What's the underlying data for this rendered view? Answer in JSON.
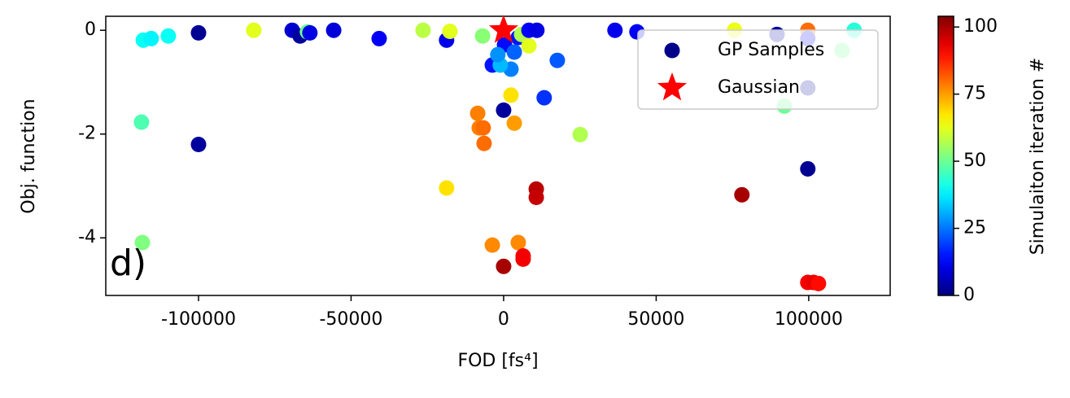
{
  "chart_data": {
    "type": "scatter",
    "xlabel": "FOD [fs⁴]",
    "ylabel": "Obj. function",
    "annotation": "d)",
    "xlim": [
      -130400,
      126700
    ],
    "xticks": [
      -100000,
      -50000,
      0,
      50000,
      100000
    ],
    "ylim": [
      -5.11,
      0.27
    ],
    "yticks": [
      -4,
      -2,
      0
    ],
    "legend_position": "upper right",
    "series": [
      {
        "name": "GP Samples",
        "color": "#00008b",
        "marker": "circle",
        "x": [
          -100000,
          -100000,
          -118100,
          -115500,
          -109900,
          -118700,
          -118400,
          -81900,
          -69300,
          -66700,
          -64300,
          -63500,
          -55700,
          -40800,
          -26400,
          -18700,
          -17600,
          -18700,
          -8500,
          -8000,
          -6700,
          -6400,
          -6900,
          -3700,
          0,
          0,
          -3700,
          300,
          2400,
          3500,
          4800,
          6400,
          6400,
          4800,
          3500,
          2400,
          -1100,
          -1900,
          5900,
          8300,
          8300,
          10900,
          10700,
          10700,
          13300,
          17600,
          25100,
          36500,
          43700,
          75700,
          78100,
          89600,
          92000,
          99700,
          99700,
          99700,
          99700,
          99700,
          101600,
          103200,
          114900,
          110900
        ],
        "values": [
          -0.05,
          -2.2,
          -0.19,
          -0.16,
          -0.11,
          -1.77,
          -4.09,
          0,
          0,
          -0.11,
          -0.03,
          -0.05,
          0,
          -0.16,
          0,
          -0.19,
          -0.02,
          -3.04,
          -1.6,
          -1.88,
          -1.88,
          -2.18,
          -0.11,
          -4.14,
          -4.55,
          -1.54,
          -0.67,
          -0.28,
          -1.25,
          -1.79,
          -4.09,
          -4.35,
          -4.41,
          -0.14,
          -0.42,
          -0.75,
          -0.67,
          -0.47,
          -0.08,
          -0.3,
          0,
          0,
          -3.06,
          -3.22,
          -1.3,
          -0.58,
          -2.01,
          0,
          -0.03,
          0,
          -3.17,
          -0.08,
          -1.46,
          0,
          -0.16,
          -1.11,
          -2.67,
          -4.86,
          -4.86,
          -4.88,
          0,
          -0.39
        ],
        "c": [
          2,
          3,
          40,
          38,
          40,
          47,
          52,
          62,
          8,
          3,
          50,
          10,
          9,
          12,
          58,
          11,
          62,
          68,
          78,
          78,
          80,
          80,
          53,
          77,
          100,
          3,
          15,
          14,
          68,
          75,
          77,
          92,
          92,
          15,
          23,
          26,
          32,
          28,
          57,
          62,
          13,
          10,
          98,
          97,
          18,
          22,
          57,
          11,
          12,
          63,
          100,
          4,
          50,
          80,
          12,
          3,
          2,
          92,
          93,
          90,
          43,
          50
        ]
      },
      {
        "name": "Gaussian",
        "color": "#ff0000",
        "marker": "star",
        "x": [
          0
        ],
        "values": [
          0
        ]
      }
    ],
    "colorbar": {
      "label": "Simulaiton iteration #",
      "colormap": "jet",
      "lim": [
        0,
        104
      ],
      "ticks": [
        0,
        25,
        50,
        75,
        100
      ]
    }
  }
}
